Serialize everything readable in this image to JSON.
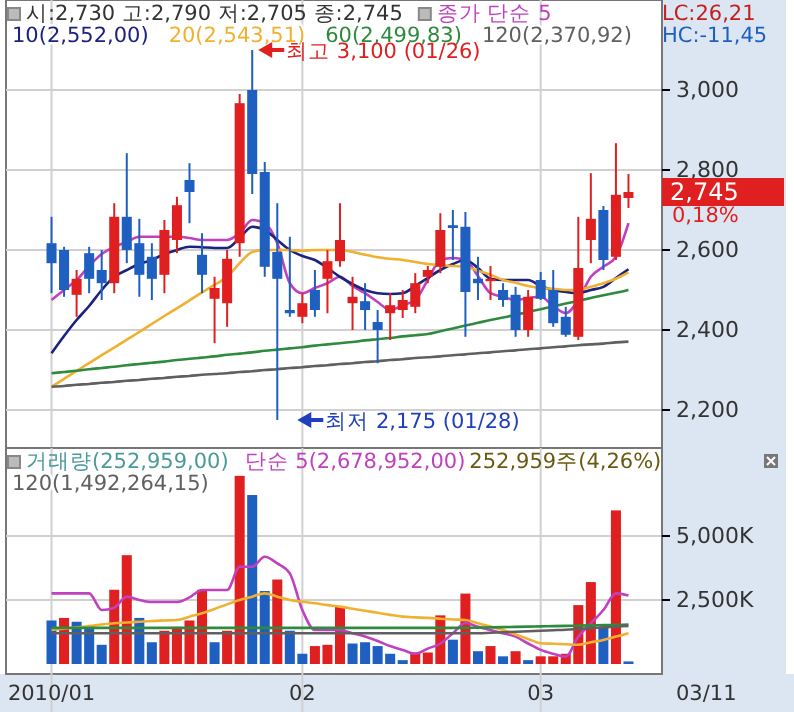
{
  "chart_data": [
    {
      "type": "candlestick",
      "title": "시:2,730 고:2,790 저:2,705 종:2,745",
      "categories": [
        "2010/01",
        null,
        null,
        null,
        null,
        null,
        null,
        null,
        null,
        null,
        null,
        null,
        null,
        null,
        null,
        null,
        null,
        null,
        null,
        null,
        "02",
        null,
        null,
        null,
        null,
        null,
        null,
        null,
        null,
        null,
        null,
        null,
        null,
        null,
        null,
        null,
        null,
        null,
        null,
        "03",
        null,
        null,
        null,
        null,
        null,
        null,
        null
      ],
      "ohlc": [
        [
          2617,
          2683,
          2492,
          2567
        ],
        [
          2600,
          2608,
          2483,
          2500
        ],
        [
          2488,
          2550,
          2433,
          2528
        ],
        [
          2592,
          2608,
          2492,
          2528
        ],
        [
          2550,
          2600,
          2475,
          2517
        ],
        [
          2517,
          2717,
          2492,
          2683
        ],
        [
          2683,
          2842,
          2567,
          2600
        ],
        [
          2617,
          2678,
          2483,
          2538
        ],
        [
          2583,
          2617,
          2475,
          2528
        ],
        [
          2538,
          2675,
          2492,
          2650
        ],
        [
          2625,
          2733,
          2592,
          2712
        ],
        [
          2775,
          2817,
          2667,
          2745
        ],
        [
          2588,
          2642,
          2492,
          2538
        ],
        [
          2478,
          2533,
          2367,
          2505
        ],
        [
          2467,
          2600,
          2408,
          2578
        ],
        [
          2617,
          2990,
          2583,
          2967
        ],
        [
          3000,
          3100,
          2740,
          2790
        ],
        [
          2795,
          2820,
          2533,
          2558
        ],
        [
          2595,
          2717,
          2175,
          2528
        ],
        [
          2450,
          2633,
          2433,
          2442
        ],
        [
          2433,
          2492,
          2417,
          2467
        ],
        [
          2500,
          2550,
          2433,
          2450
        ],
        [
          2528,
          2600,
          2442,
          2572
        ],
        [
          2572,
          2717,
          2558,
          2625
        ],
        [
          2467,
          2533,
          2400,
          2483
        ],
        [
          2472,
          2517,
          2400,
          2450
        ],
        [
          2420,
          2450,
          2317,
          2400
        ],
        [
          2442,
          2492,
          2375,
          2462
        ],
        [
          2450,
          2500,
          2430,
          2475
        ],
        [
          2458,
          2542,
          2442,
          2517
        ],
        [
          2533,
          2560,
          2517,
          2550
        ],
        [
          2558,
          2692,
          2542,
          2650
        ],
        [
          2662,
          2700,
          2575,
          2655
        ],
        [
          2658,
          2695,
          2383,
          2495
        ],
        [
          2528,
          2583,
          2475,
          2517
        ],
        [
          2522,
          2560,
          2475,
          2528
        ],
        [
          2500,
          2517,
          2458,
          2475
        ],
        [
          2488,
          2508,
          2383,
          2400
        ],
        [
          2400,
          2500,
          2383,
          2483
        ],
        [
          2525,
          2545,
          2475,
          2478
        ],
        [
          2500,
          2550,
          2408,
          2417
        ],
        [
          2433,
          2458,
          2383,
          2388
        ],
        [
          2383,
          2683,
          2375,
          2555
        ],
        [
          2625,
          2792,
          2567,
          2678
        ],
        [
          2700,
          2710,
          2550,
          2575
        ],
        [
          2583,
          2867,
          2575,
          2738
        ],
        [
          2730,
          2790,
          2705,
          2745
        ]
      ],
      "colors": [
        "#1f5fbf",
        "#1f5fbf",
        "#e02020",
        "#1f5fbf",
        "#1f5fbf",
        "#e02020",
        "#1f5fbf",
        "#1f5fbf",
        "#1f5fbf",
        "#e02020",
        "#e02020",
        "#1f5fbf",
        "#1f5fbf",
        "#e02020",
        "#e02020",
        "#e02020",
        "#1f5fbf",
        "#1f5fbf",
        "#1f5fbf",
        "#1f5fbf",
        "#e02020",
        "#1f5fbf",
        "#e02020",
        "#e02020",
        "#e02020",
        "#1f5fbf",
        "#1f5fbf",
        "#e02020",
        "#e02020",
        "#e02020",
        "#e02020",
        "#e02020",
        "#1f5fbf",
        "#1f5fbf",
        "#1f5fbf",
        "#e02020",
        "#1f5fbf",
        "#1f5fbf",
        "#e02020",
        "#1f5fbf",
        "#1f5fbf",
        "#1f5fbf",
        "#e02020",
        "#e02020",
        "#1f5fbf",
        "#e02020",
        "#e02020"
      ],
      "series": [
        {
          "type": "line",
          "name": "종가 단순 5",
          "color": "#c040c0",
          "values": [
            2475,
            2500,
            2525,
            2560,
            2590,
            2608,
            2620,
            2633,
            2633,
            2633,
            2633,
            2630,
            2625,
            2625,
            2625,
            2642,
            2675,
            2667,
            2617,
            2517,
            2492,
            2505,
            2517,
            2533,
            2510,
            2492,
            2470,
            2450,
            2462,
            2475,
            2525,
            2575,
            2580,
            2575,
            2535,
            2492,
            2483,
            2475,
            2480,
            2483,
            2460,
            2442,
            2475,
            2533,
            2558,
            2583,
            2667
          ]
        },
        {
          "type": "line",
          "name": "10(2,552,00)",
          "color": "#1a237e",
          "values": [
            2342,
            2385,
            2425,
            2460,
            2500,
            2533,
            2550,
            2565,
            2575,
            2590,
            2600,
            2608,
            2607,
            2605,
            2605,
            2630,
            2658,
            2650,
            2625,
            2600,
            2585,
            2575,
            2555,
            2533,
            2515,
            2500,
            2492,
            2490,
            2492,
            2510,
            2530,
            2550,
            2565,
            2575,
            2555,
            2528,
            2525,
            2525,
            2525,
            2510,
            2500,
            2495,
            2492,
            2500,
            2508,
            2530,
            2552
          ]
        },
        {
          "type": "line",
          "name": "20(2,543,51)",
          "color": "#f0b030",
          "values": [
            2258,
            2278,
            2298,
            2317,
            2337,
            2356,
            2376,
            2395,
            2415,
            2435,
            2454,
            2474,
            2494,
            2513,
            2533,
            2567,
            2595,
            2600,
            2600,
            2600,
            2598,
            2600,
            2600,
            2600,
            2595,
            2588,
            2582,
            2578,
            2575,
            2570,
            2565,
            2562,
            2560,
            2558,
            2548,
            2538,
            2525,
            2518,
            2510,
            2505,
            2503,
            2500,
            2500,
            2508,
            2517,
            2528,
            2544
          ]
        },
        {
          "type": "line",
          "name": "60(2,499,83)",
          "color": "#2e8b3e",
          "values": [
            2292,
            2295,
            2298,
            2302,
            2305,
            2308,
            2312,
            2315,
            2318,
            2321,
            2325,
            2328,
            2331,
            2334,
            2338,
            2341,
            2344,
            2348,
            2351,
            2354,
            2357,
            2361,
            2364,
            2367,
            2370,
            2374,
            2377,
            2380,
            2384,
            2387,
            2390,
            2397,
            2404,
            2411,
            2418,
            2425,
            2431,
            2438,
            2445,
            2452,
            2459,
            2466,
            2473,
            2480,
            2487,
            2493,
            2500
          ]
        },
        {
          "type": "line",
          "name": "120(2,370,92)",
          "color": "#606060",
          "values": [
            2258,
            2260,
            2263,
            2265,
            2268,
            2270,
            2273,
            2275,
            2278,
            2280,
            2283,
            2285,
            2288,
            2290,
            2292,
            2295,
            2297,
            2300,
            2302,
            2305,
            2307,
            2310,
            2312,
            2315,
            2317,
            2320,
            2322,
            2325,
            2327,
            2330,
            2332,
            2334,
            2337,
            2339,
            2342,
            2344,
            2347,
            2349,
            2352,
            2354,
            2357,
            2359,
            2362,
            2364,
            2366,
            2369,
            2371
          ]
        }
      ],
      "ylim": [
        2115,
        3145
      ],
      "yticks": [
        {
          "value": 2200,
          "label": "2,200"
        },
        {
          "value": 2400,
          "label": "2,400"
        },
        {
          "value": 2600,
          "label": "2,600"
        },
        {
          "value": 2800,
          "label": "2,800"
        },
        {
          "value": 3000,
          "label": "3,000"
        }
      ],
      "grid": true,
      "legend": "top left",
      "tick_labels": "y",
      "annotations": [
        "최고 3,100 (01/26)",
        "최저 2,175 (01/28)",
        "2,745",
        "0,18%",
        "LC:26,21",
        "HC:-11,45"
      ]
    },
    {
      "type": "bar",
      "title": "거래량(252,959,00)",
      "categories": [
        "2010/01",
        null,
        null,
        null,
        null,
        null,
        null,
        null,
        null,
        null,
        null,
        null,
        null,
        null,
        null,
        null,
        null,
        null,
        null,
        null,
        "02",
        null,
        null,
        null,
        null,
        null,
        null,
        null,
        null,
        null,
        null,
        null,
        null,
        null,
        null,
        null,
        null,
        null,
        null,
        "03",
        null,
        null,
        null,
        null,
        null,
        null,
        null
      ],
      "series": [
        {
          "values": [
            1700,
            1800,
            1650,
            1450,
            750,
            2900,
            4250,
            1800,
            850,
            1300,
            1450,
            1700,
            2900,
            850,
            1300,
            7350,
            6600,
            2850,
            3300,
            1300,
            400,
            700,
            750,
            2250,
            800,
            850,
            700,
            400,
            150,
            450,
            450,
            1900,
            950,
            2750,
            500,
            700,
            300,
            500,
            150,
            300,
            300,
            400,
            2300,
            3200,
            1450,
            6000,
            100
          ],
          "colors": [
            "#1f5fbf",
            "#e02020",
            "#1f5fbf",
            "#1f5fbf",
            "#1f5fbf",
            "#e02020",
            "#e02020",
            "#1f5fbf",
            "#1f5fbf",
            "#e02020",
            "#e02020",
            "#e02020",
            "#e02020",
            "#1f5fbf",
            "#e02020",
            "#e02020",
            "#1f5fbf",
            "#1f5fbf",
            "#e02020",
            "#1f5fbf",
            "#1f5fbf",
            "#e02020",
            "#e02020",
            "#e02020",
            "#1f5fbf",
            "#1f5fbf",
            "#1f5fbf",
            "#1f5fbf",
            "#1f5fbf",
            "#e02020",
            "#e02020",
            "#e02020",
            "#1f5fbf",
            "#e02020",
            "#1f5fbf",
            "#e02020",
            "#1f5fbf",
            "#e02020",
            "#1f5fbf",
            "#e02020",
            "#e02020",
            "#e02020",
            "#e02020",
            "#e02020",
            "#1f5fbf",
            "#e02020",
            "#1f5fbf"
          ]
        },
        {
          "type": "line",
          "name": "단순 5(2,678,952,00)",
          "color": "#c040c0",
          "values": [
            2760,
            2760,
            2760,
            2760,
            2110,
            2200,
            2630,
            2500,
            2420,
            2420,
            2420,
            2600,
            2890,
            2890,
            2890,
            3800,
            3800,
            4190,
            3930,
            3540,
            2110,
            1330,
            1330,
            1330,
            1200,
            1070,
            900,
            700,
            550,
            400,
            600,
            800,
            1200,
            1600,
            1450,
            1330,
            1200,
            1070,
            800,
            550,
            400,
            290,
            1070,
            1590,
            2110,
            2760,
            2680
          ]
        },
        {
          "type": "line",
          "color": "#f0b030",
          "values": [
            1330,
            1380,
            1430,
            1480,
            1540,
            1590,
            1620,
            1650,
            1680,
            1700,
            1720,
            1850,
            1980,
            2150,
            2330,
            2500,
            2630,
            2760,
            2630,
            2500,
            2430,
            2370,
            2300,
            2240,
            2160,
            2080,
            2000,
            1920,
            1850,
            1820,
            1800,
            1770,
            1740,
            1720,
            1590,
            1460,
            1330,
            1150,
            980,
            810,
            790,
            770,
            750,
            850,
            940,
            1070,
            1200
          ]
        },
        {
          "type": "line",
          "color": "#2e8b3e",
          "values": [
            1410,
            1410,
            1410,
            1410,
            1410,
            1410,
            1410,
            1410,
            1410,
            1410,
            1410,
            1410,
            1410,
            1410,
            1410,
            1410,
            1410,
            1410,
            1410,
            1410,
            1410,
            1410,
            1410,
            1410,
            1410,
            1410,
            1410,
            1410,
            1410,
            1410,
            1410,
            1410,
            1410,
            1410,
            1420,
            1430,
            1440,
            1450,
            1460,
            1470,
            1480,
            1490,
            1500,
            1510,
            1520,
            1530,
            1540
          ]
        },
        {
          "type": "line",
          "name": "120(1,492,264,15)",
          "color": "#606060",
          "values": [
            1200,
            1200,
            1200,
            1200,
            1200,
            1200,
            1200,
            1200,
            1200,
            1200,
            1200,
            1200,
            1200,
            1200,
            1200,
            1200,
            1200,
            1200,
            1200,
            1200,
            1200,
            1200,
            1200,
            1200,
            1200,
            1200,
            1200,
            1200,
            1200,
            1200,
            1200,
            1200,
            1200,
            1200,
            1200,
            1220,
            1240,
            1260,
            1280,
            1300,
            1320,
            1340,
            1370,
            1400,
            1430,
            1460,
            1490
          ]
        }
      ],
      "ylim": [
        0,
        8281
      ],
      "yticks": [
        {
          "value": 2500,
          "label": "2,500K"
        },
        {
          "value": 5000,
          "label": "5,000K"
        }
      ],
      "grid": true,
      "legend": "top left",
      "annotations": [
        "252,959주(4,26%)",
        "03/11"
      ]
    }
  ]
}
